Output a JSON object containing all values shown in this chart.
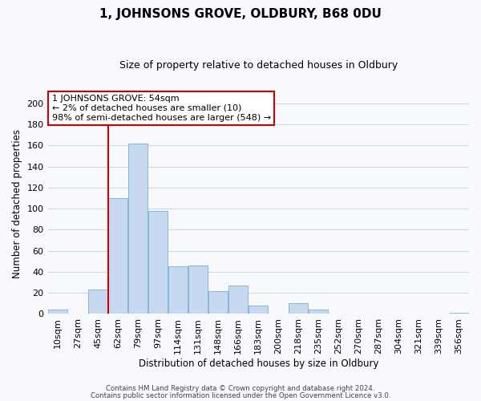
{
  "title": "1, JOHNSONS GROVE, OLDBURY, B68 0DU",
  "subtitle": "Size of property relative to detached houses in Oldbury",
  "xlabel": "Distribution of detached houses by size in Oldbury",
  "ylabel": "Number of detached properties",
  "bar_labels": [
    "10sqm",
    "27sqm",
    "45sqm",
    "62sqm",
    "79sqm",
    "97sqm",
    "114sqm",
    "131sqm",
    "148sqm",
    "166sqm",
    "183sqm",
    "200sqm",
    "218sqm",
    "235sqm",
    "252sqm",
    "270sqm",
    "287sqm",
    "304sqm",
    "321sqm",
    "339sqm",
    "356sqm"
  ],
  "bar_values": [
    4,
    0,
    23,
    110,
    162,
    98,
    45,
    46,
    22,
    27,
    8,
    0,
    10,
    4,
    0,
    0,
    0,
    0,
    0,
    0,
    1
  ],
  "bar_color": "#c6d9f1",
  "bar_edge_color": "#7bafd4",
  "grid_color": "#d0d8e8",
  "vline_color": "#cc0000",
  "annotation_line1": "1 JOHNSONS GROVE: 54sqm",
  "annotation_line2": "← 2% of detached houses are smaller (10)",
  "annotation_line3": "98% of semi-detached houses are larger (548) →",
  "ylim": [
    0,
    210
  ],
  "yticks": [
    0,
    20,
    40,
    60,
    80,
    100,
    120,
    140,
    160,
    180,
    200
  ],
  "footer_line1": "Contains HM Land Registry data © Crown copyright and database right 2024.",
  "footer_line2": "Contains public sector information licensed under the Open Government Licence v3.0.",
  "bg_color": "#f7f9fc",
  "title_fontsize": 11,
  "subtitle_fontsize": 9
}
